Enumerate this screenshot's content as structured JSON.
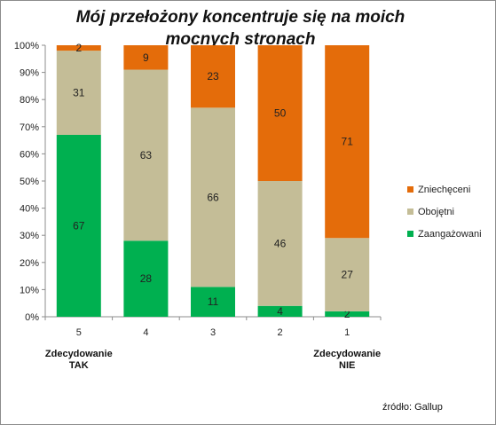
{
  "chart_data": {
    "type": "bar",
    "stacked": true,
    "percent": true,
    "title": "Mój przełożony koncentruje się na moich mocnych stronach",
    "categories": [
      "5",
      "4",
      "3",
      "2",
      "1"
    ],
    "category_notes": [
      {
        "category": "5",
        "text": [
          "Zdecydowanie",
          "TAK"
        ]
      },
      {
        "category": "1",
        "text": [
          "Zdecydowanie",
          "NIE"
        ]
      }
    ],
    "series": [
      {
        "name": "Zaangażowani",
        "color": "#00b050",
        "values": [
          67,
          28,
          11,
          4,
          2
        ]
      },
      {
        "name": "Obojętni",
        "color": "#c4bd97",
        "values": [
          31,
          63,
          66,
          46,
          27
        ]
      },
      {
        "name": "Zniechęceni",
        "color": "#e46c0a",
        "values": [
          2,
          9,
          23,
          50,
          71
        ]
      }
    ],
    "y_ticks": [
      "0%",
      "10%",
      "20%",
      "30%",
      "40%",
      "50%",
      "60%",
      "70%",
      "80%",
      "90%",
      "100%"
    ],
    "ylim": [
      0,
      100
    ],
    "grid": false,
    "legend_position": "right"
  },
  "source": "źródło: Gallup"
}
